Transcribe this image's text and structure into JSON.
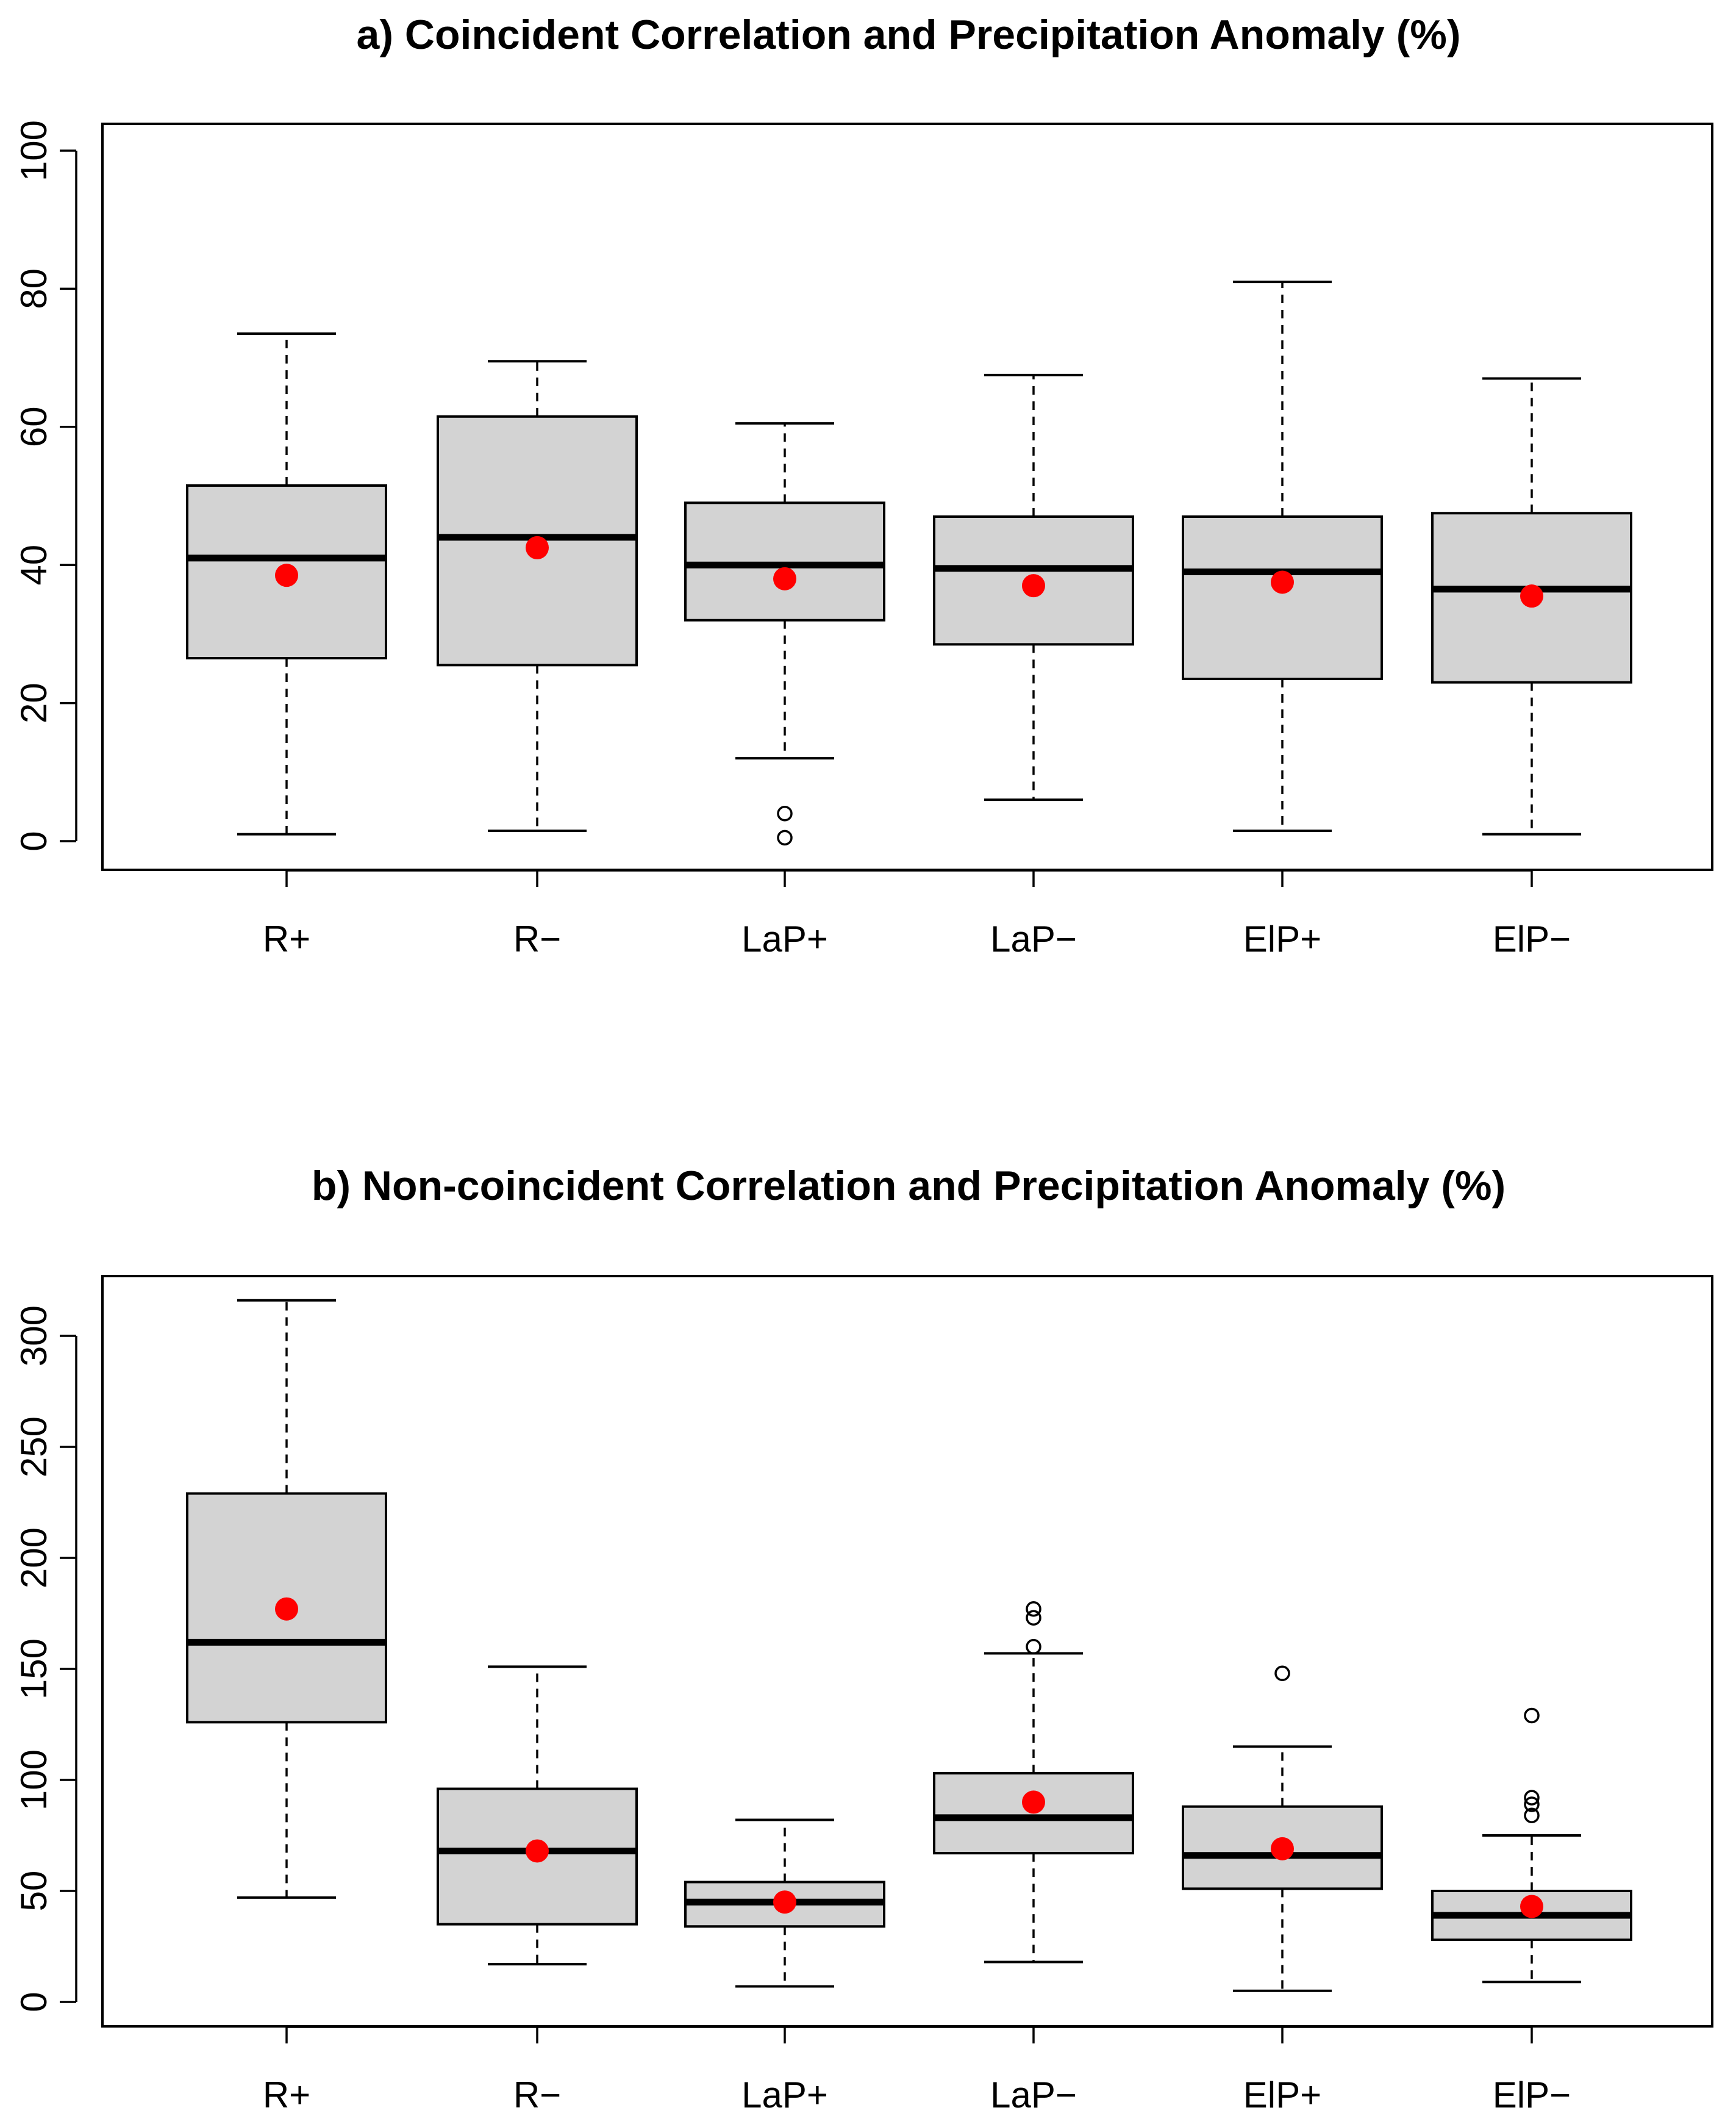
{
  "colors": {
    "box_fill": "#d3d3d3",
    "mean_marker": "#ff0000",
    "line": "#000000"
  },
  "chart_data": [
    {
      "type": "boxplot",
      "title": "a) Coincident Correlation and Precipitation Anomaly (%)",
      "xlabel": "",
      "ylabel": "",
      "ylim": [
        0,
        100
      ],
      "yticks": [
        0,
        20,
        40,
        60,
        80,
        100
      ],
      "categories": [
        "R+",
        "R−",
        "LaP+",
        "LaP−",
        "ElP+",
        "ElP−"
      ],
      "boxes": [
        {
          "label": "R+",
          "min": 1.0,
          "q1": 26.5,
          "median": 41.0,
          "q3": 51.5,
          "max": 73.5,
          "mean": 38.5,
          "outliers": []
        },
        {
          "label": "R−",
          "min": 1.5,
          "q1": 25.5,
          "median": 44.0,
          "q3": 61.5,
          "max": 69.5,
          "mean": 42.5,
          "outliers": []
        },
        {
          "label": "LaP+",
          "min": 12.0,
          "q1": 32.0,
          "median": 40.0,
          "q3": 49.0,
          "max": 60.5,
          "mean": 38.0,
          "outliers": [
            4.0,
            0.5
          ]
        },
        {
          "label": "LaP−",
          "min": 6.0,
          "q1": 28.5,
          "median": 39.5,
          "q3": 47.0,
          "max": 67.5,
          "mean": 37.0,
          "outliers": []
        },
        {
          "label": "ElP+",
          "min": 1.5,
          "q1": 23.5,
          "median": 39.0,
          "q3": 47.0,
          "max": 81.0,
          "mean": 37.5,
          "outliers": []
        },
        {
          "label": "ElP−",
          "min": 1.0,
          "q1": 23.0,
          "median": 36.5,
          "q3": 47.5,
          "max": 67.0,
          "mean": 35.5,
          "outliers": []
        }
      ]
    },
    {
      "type": "boxplot",
      "title": "b) Non-coincident Correlation and Precipitation Anomaly (%)",
      "xlabel": "",
      "ylabel": "",
      "ylim": [
        0,
        325
      ],
      "yticks": [
        0,
        50,
        100,
        150,
        200,
        250,
        300
      ],
      "categories": [
        "R+",
        "R−",
        "LaP+",
        "LaP−",
        "ElP+",
        "ElP−"
      ],
      "boxes": [
        {
          "label": "R+",
          "min": 47,
          "q1": 126,
          "median": 162,
          "q3": 229,
          "max": 316,
          "mean": 177,
          "outliers": []
        },
        {
          "label": "R−",
          "min": 17,
          "q1": 35,
          "median": 68,
          "q3": 96,
          "max": 151,
          "mean": 68,
          "outliers": []
        },
        {
          "label": "LaP+",
          "min": 7,
          "q1": 34,
          "median": 45,
          "q3": 54,
          "max": 82,
          "mean": 45,
          "outliers": []
        },
        {
          "label": "LaP−",
          "min": 18,
          "q1": 67,
          "median": 83,
          "q3": 103,
          "max": 157,
          "mean": 90,
          "outliers": [
            160,
            173,
            177
          ]
        },
        {
          "label": "ElP+",
          "min": 5,
          "q1": 51,
          "median": 66,
          "q3": 88,
          "max": 115,
          "mean": 69,
          "outliers": [
            148
          ]
        },
        {
          "label": "ElP−",
          "min": 9,
          "q1": 28,
          "median": 39,
          "q3": 50,
          "max": 75,
          "mean": 43,
          "outliers": [
            84,
            89,
            92,
            129
          ]
        }
      ]
    }
  ]
}
